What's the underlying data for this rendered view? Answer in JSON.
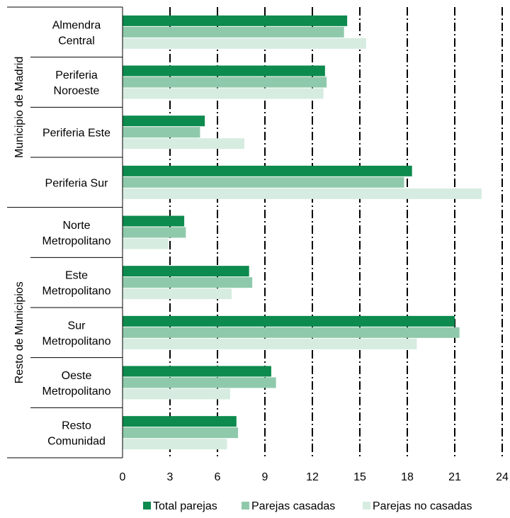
{
  "chart_data": {
    "type": "bar",
    "orientation": "horizontal",
    "groups": [
      {
        "name": "Municipio de Madrid",
        "categories": [
          "Almendra Central",
          "Periferia Noroeste",
          "Periferia Este",
          "Periferia Sur"
        ]
      },
      {
        "name": "Resto de Municipios",
        "categories": [
          "Norte Metropolitano",
          "Este Metropolitano",
          "Sur Metropolitano",
          "Oeste Metropolitano",
          "Resto Comunidad"
        ]
      }
    ],
    "categories": [
      "Almendra Central",
      "Periferia Noroeste",
      "Periferia Este",
      "Periferia Sur",
      "Norte Metropolitano",
      "Este Metropolitano",
      "Sur Metropolitano",
      "Oeste Metropolitano",
      "Resto Comunidad"
    ],
    "series": [
      {
        "name": "Total parejas",
        "color": "#0d8a4e",
        "values": [
          14.2,
          12.8,
          5.2,
          18.3,
          3.9,
          8.0,
          21.0,
          9.4,
          7.2
        ]
      },
      {
        "name": "Parejas casadas",
        "color": "#8fc9ab",
        "values": [
          14.0,
          12.9,
          4.9,
          17.8,
          4.0,
          8.2,
          21.3,
          9.7,
          7.3
        ]
      },
      {
        "name": "Parejas no casadas",
        "color": "#d6ece0",
        "values": [
          15.4,
          12.7,
          7.7,
          22.7,
          2.9,
          6.9,
          18.6,
          6.8,
          6.6
        ]
      }
    ],
    "xlim": [
      0,
      24
    ],
    "xticks": [
      "0",
      "3",
      "6",
      "9",
      "12",
      "15",
      "18",
      "21",
      "24"
    ],
    "grid": "vertical dash-dot",
    "legend": "bottom"
  }
}
